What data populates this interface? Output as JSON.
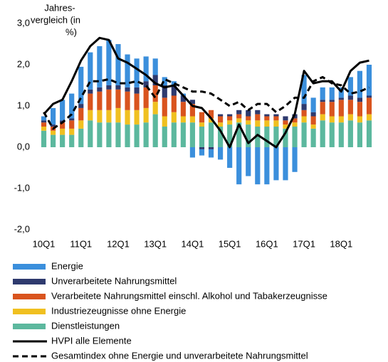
{
  "chart_data": {
    "type": "bar",
    "annotation": [
      "Jahres-",
      "vergleich (in",
      "%)"
    ],
    "categories": [
      "10Q1",
      null,
      null,
      null,
      "11Q1",
      null,
      null,
      null,
      "12Q1",
      null,
      null,
      null,
      "13Q1",
      null,
      null,
      null,
      "14Q1",
      null,
      null,
      null,
      "15Q1",
      null,
      null,
      null,
      "16Q1",
      null,
      null,
      null,
      "17Q1",
      null,
      null,
      null,
      "18Q1",
      null,
      null,
      null
    ],
    "series": [
      {
        "name": "Energie",
        "color": "#3b8fdc",
        "values": [
          0.1,
          0.4,
          0.5,
          0.6,
          0.9,
          0.9,
          1.0,
          1.1,
          1.0,
          0.8,
          0.7,
          0.6,
          0.4,
          0.2,
          0.1,
          0.05,
          -0.25,
          -0.15,
          -0.2,
          -0.3,
          -0.5,
          -0.9,
          -0.7,
          -0.9,
          -0.9,
          -0.8,
          -0.8,
          -0.6,
          0.7,
          0.35,
          0.3,
          0.3,
          0.25,
          0.45,
          0.65,
          0.75
        ]
      },
      {
        "name": "Unverarbeitete Nahrungsmittel",
        "color": "#2e3a6e",
        "values": [
          0.05,
          0.05,
          0.05,
          0.05,
          0.1,
          0.1,
          0.1,
          0.1,
          0.1,
          0.1,
          0.15,
          0.15,
          0.25,
          0.3,
          0.25,
          0.15,
          0.1,
          -0.05,
          -0.05,
          0.05,
          0.05,
          0.1,
          0.15,
          0.1,
          0.05,
          0.05,
          0.1,
          0.1,
          0.15,
          0.1,
          0.05,
          0.05,
          0.05,
          0.1,
          0.1,
          0.05
        ]
      },
      {
        "name": "Verarbeitete Nahrungsmittel einschl. Alkohol und Tabakerzeugnisse",
        "color": "#d9541e",
        "values": [
          0.1,
          0.1,
          0.15,
          0.2,
          0.3,
          0.4,
          0.45,
          0.5,
          0.45,
          0.45,
          0.4,
          0.5,
          0.4,
          0.45,
          0.4,
          0.35,
          0.3,
          0.25,
          0.2,
          0.15,
          0.1,
          0.1,
          0.1,
          0.15,
          0.1,
          0.1,
          0.1,
          0.1,
          0.15,
          0.2,
          0.3,
          0.35,
          0.4,
          0.35,
          0.35,
          0.4
        ]
      },
      {
        "name": "Industriezeugnisse ohne Energie",
        "color": "#f0c020",
        "values": [
          0.1,
          0.1,
          0.15,
          0.15,
          0.2,
          0.25,
          0.3,
          0.3,
          0.35,
          0.35,
          0.35,
          0.35,
          0.3,
          0.25,
          0.25,
          0.15,
          0.15,
          0.1,
          0.1,
          0.1,
          0.1,
          0.1,
          0.1,
          0.15,
          0.15,
          0.15,
          0.1,
          0.1,
          0.15,
          0.1,
          0.15,
          0.15,
          0.15,
          0.15,
          0.15,
          0.15
        ]
      },
      {
        "name": "Dienstleistungen",
        "color": "#5cb89e",
        "values": [
          0.4,
          0.3,
          0.3,
          0.3,
          0.45,
          0.65,
          0.6,
          0.6,
          0.6,
          0.55,
          0.55,
          0.6,
          0.8,
          0.5,
          0.6,
          0.6,
          0.6,
          0.5,
          0.6,
          0.5,
          0.55,
          0.6,
          0.55,
          0.5,
          0.5,
          0.5,
          0.45,
          0.5,
          0.6,
          0.45,
          0.65,
          0.6,
          0.6,
          0.65,
          0.6,
          0.65
        ]
      }
    ],
    "lines": [
      {
        "name": "HVPI alle Elemente",
        "color": "#000000",
        "style": "solid",
        "values": [
          0.8,
          1.05,
          1.15,
          1.6,
          2.1,
          2.45,
          2.65,
          2.6,
          2.15,
          2.05,
          1.9,
          1.75,
          1.55,
          1.45,
          1.5,
          1.25,
          1.0,
          0.95,
          0.7,
          0.4,
          0.0,
          0.55,
          0.1,
          0.3,
          0.15,
          0.0,
          0.35,
          0.8,
          1.85,
          1.55,
          1.6,
          1.6,
          1.35,
          1.85,
          2.05,
          2.1
        ]
      },
      {
        "name": "Gesamtindex ohne Energie und unverarbeitete Nahrungsmittel",
        "color": "#000000",
        "style": "dashed",
        "values": [
          0.85,
          0.45,
          0.6,
          0.8,
          1.2,
          1.6,
          1.6,
          1.65,
          1.55,
          1.55,
          1.6,
          1.5,
          1.2,
          1.65,
          1.55,
          1.45,
          1.35,
          1.35,
          1.3,
          1.15,
          1.0,
          1.1,
          0.9,
          1.05,
          1.05,
          0.85,
          1.0,
          1.2,
          1.2,
          1.6,
          1.7,
          1.55,
          1.5,
          1.3,
          1.35,
          1.45
        ]
      }
    ],
    "ylim": [
      -2,
      3
    ],
    "yticks": [
      {
        "value": -2,
        "label": "-2,0"
      },
      {
        "value": -1,
        "label": "-1,0"
      },
      {
        "value": 0,
        "label": "0,0"
      },
      {
        "value": 1,
        "label": "1,0"
      },
      {
        "value": 2,
        "label": "2,0"
      },
      {
        "value": 3,
        "label": "3,0"
      }
    ]
  }
}
